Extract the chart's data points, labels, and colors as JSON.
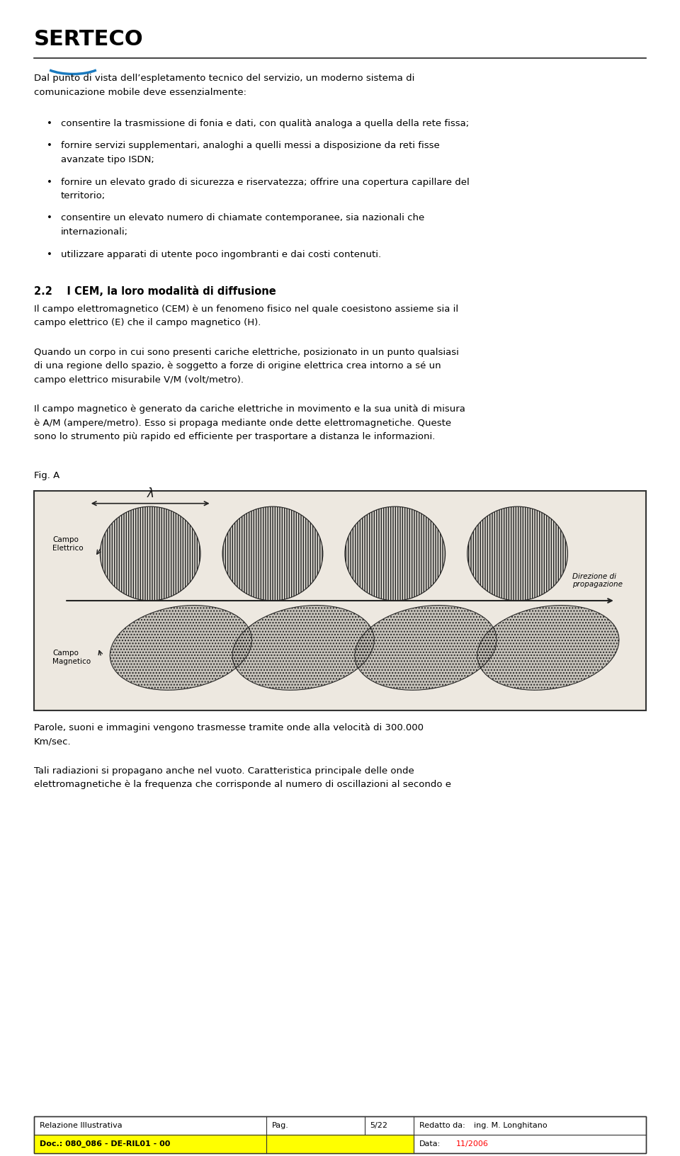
{
  "bg_color": "#ffffff",
  "logo_text": "SERTECO",
  "logo_color": "#000000",
  "logo_arc_color": "#1a7abf",
  "bullet_items": [
    "consentire la trasmissione di fonia e dati, con qualità analoga a quella della rete fissa;",
    "fornire servizi supplementari, analoghi a quelli messi a disposizione da reti fisse\navanzate tipo ISDN;",
    "fornire un elevato grado di sicurezza e riservatezza; offrire una copertura capillare del\nterritorio;",
    "consentire un elevato numero di chiamate contemporanee, sia nazionali che\ninternazionali;",
    "utilizzare apparati di utente poco ingombranti e dai costi contenuti."
  ],
  "section_heading": "2.2    I CEM, la loro modalità di diffusione",
  "para1": "Il campo elettromagnetico (CEM) è un fenomeno fisico nel quale coesistono assieme sia il\ncampo elettrico (E) che il campo magnetico (H).",
  "para2": "Quando un corpo in cui sono presenti cariche elettriche, posizionato in un punto qualsiasi\ndi una regione dello spazio, è soggetto a forze di origine elettrica crea intorno a sé un\ncampo elettrico misurabile V/M (volt/metro).",
  "para3": "Il campo magnetico è generato da cariche elettriche in movimento e la sua unità di misura\nè A/M (ampere/metro). Esso si propaga mediante onde dette elettromagnetiche. Queste\nsono lo strumento più rapido ed efficiente per trasportare a distanza le informazioni.",
  "fig_label": "Fig. A",
  "para4": "Parole, suoni e immagini vengono trasmesse tramite onde alla velocità di 300.000\nKm/sec.",
  "para5": "Tali radiazioni si propagano anche nel vuoto. Caratteristica principale delle onde\nelettromagnetiche è la frequenza che corrisponde al numero di oscillazioni al secondo e",
  "footer_col1": "Relazione Illustrativa",
  "footer_col2_label": "Pag.",
  "footer_col2_val": "5/22",
  "footer_col3_label": "Redatto da:",
  "footer_col3_val": "ing. M. Longhitano",
  "footer_row2_col1": "Doc.: 080_086 - DE-RIL01 - 00",
  "footer_row2_col2_label": "Data:",
  "footer_row2_col2_val": "11/2006",
  "footer_yellow": "#ffff00",
  "footer_red": "#ff0000"
}
